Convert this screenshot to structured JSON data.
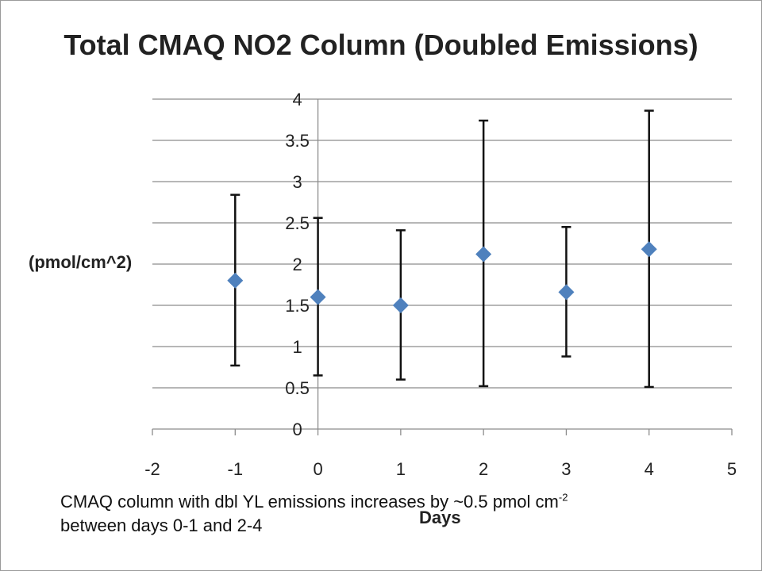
{
  "chart_data": {
    "type": "scatter",
    "title": "Total CMAQ NO2 Column (Doubled Emissions)",
    "xlabel": "Days",
    "ylabel": "(pmol/cm^2)",
    "xlim": [
      -2,
      5
    ],
    "ylim": [
      0,
      4
    ],
    "xticks": [
      -2,
      -1,
      0,
      1,
      2,
      3,
      4,
      5
    ],
    "yticks": [
      0,
      0.5,
      1,
      1.5,
      2,
      2.5,
      3,
      3.5,
      4
    ],
    "grid": "horizontal",
    "marker": "diamond",
    "marker_color": "#4f81bd",
    "points": [
      {
        "x": -1,
        "y": 1.8,
        "err_low": 0.77,
        "err_high": 2.84
      },
      {
        "x": 0,
        "y": 1.6,
        "err_low": 0.65,
        "err_high": 2.56
      },
      {
        "x": 1,
        "y": 1.5,
        "err_low": 0.6,
        "err_high": 2.41
      },
      {
        "x": 2,
        "y": 2.12,
        "err_low": 0.52,
        "err_high": 3.74
      },
      {
        "x": 3,
        "y": 1.66,
        "err_low": 0.88,
        "err_high": 2.45
      },
      {
        "x": 4,
        "y": 2.18,
        "err_low": 0.51,
        "err_high": 3.86
      }
    ]
  },
  "annotation": {
    "line1_prefix": "CMAQ column with dbl YL emissions increases by ~0.5 pmol cm",
    "line1_sup": "-2",
    "line2": "between days 0-1 and 2-4"
  }
}
